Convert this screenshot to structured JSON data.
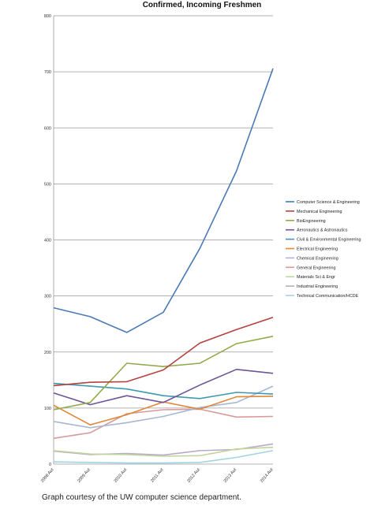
{
  "caption": "Graph courtesy of the UW computer science department.",
  "chart_data": {
    "type": "line",
    "title": "Confirmed, Incoming Freshmen",
    "x": [
      "2008 Aut",
      "2009 Aut",
      "2010 Aut",
      "2011 Aut",
      "2012 Aut",
      "2013 Aut",
      "2014 Aut"
    ],
    "ylim": [
      0,
      800
    ],
    "yticks": [
      0,
      100,
      200,
      300,
      400,
      500,
      600,
      700,
      800
    ],
    "grid": true,
    "legend": "right",
    "series": [
      {
        "name": "Computer Science & Engineering",
        "color": "#4a7ab5",
        "values": [
          279,
          263,
          235,
          271,
          385,
          523,
          706
        ]
      },
      {
        "name": "Mechanical Engineering",
        "color": "#b2433f",
        "values": [
          140,
          146,
          147,
          168,
          216,
          240,
          262
        ]
      },
      {
        "name": "BioEngineering",
        "color": "#93a94b",
        "values": [
          97,
          110,
          180,
          174,
          180,
          215,
          228
        ]
      },
      {
        "name": "Aeronautics & Astronautics",
        "color": "#6e5498",
        "values": [
          127,
          106,
          122,
          110,
          141,
          169,
          162
        ]
      },
      {
        "name": "Civil & Environmental Engineering",
        "color": "#3f9ab0",
        "values": [
          144,
          139,
          134,
          122,
          117,
          128,
          125
        ]
      },
      {
        "name": "Electrical Engineering",
        "color": "#e0883a",
        "values": [
          105,
          70,
          88,
          111,
          98,
          120,
          121
        ]
      },
      {
        "name": "Chemical Engineering",
        "color": "#a6b8d6",
        "values": [
          76,
          65,
          74,
          85,
          101,
          110,
          139
        ]
      },
      {
        "name": "General Engineering",
        "color": "#d89a9a",
        "values": [
          46,
          56,
          90,
          97,
          98,
          84,
          85
        ]
      },
      {
        "name": "Materials Sci & Engr",
        "color": "#c2d49c",
        "values": [
          24,
          18,
          17,
          14,
          15,
          27,
          30
        ]
      },
      {
        "name": "Industrial Engineering",
        "color": "#b8aac9",
        "values": [
          23,
          17,
          19,
          16,
          24,
          26,
          36
        ]
      },
      {
        "name": "Technical Communication/HCDE",
        "color": "#9fd4e0",
        "values": [
          4,
          3,
          2,
          2,
          3,
          12,
          24
        ]
      }
    ]
  }
}
